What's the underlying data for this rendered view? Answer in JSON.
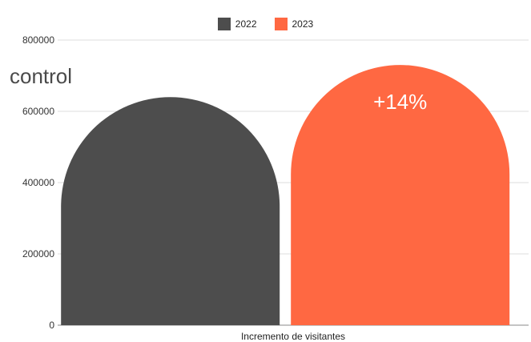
{
  "side_text": "control",
  "chart_data": {
    "type": "bar",
    "categories": [
      "Incremento de visitantes"
    ],
    "series": [
      {
        "name": "2022",
        "values": [
          640000
        ],
        "color": "#4d4d4d"
      },
      {
        "name": "2023",
        "values": [
          730000
        ],
        "color": "#ff6842"
      }
    ],
    "xlabel": "Incremento de visitantes",
    "ylabel": "",
    "ylim": [
      0,
      800000
    ],
    "yticks": [
      "0",
      "200000",
      "400000",
      "600000",
      "800000"
    ],
    "annotations": [
      {
        "series": "2023",
        "text": "+14%"
      }
    ],
    "legend_position": "top-center",
    "grid": true,
    "bar_shape": "rounded-top"
  }
}
